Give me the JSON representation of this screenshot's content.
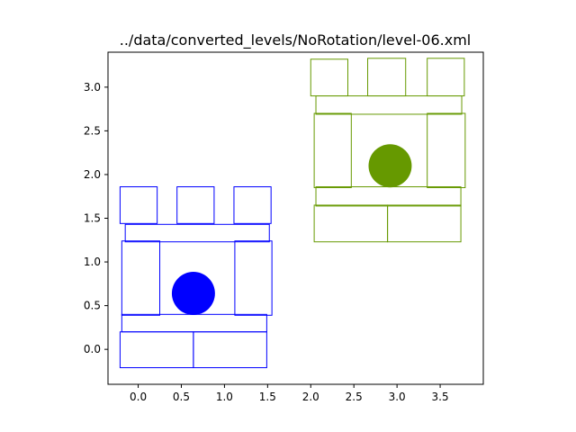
{
  "chart_data": {
    "type": "scatter",
    "title": "../data/converted_levels/NoRotation/level-06.xml",
    "xlabel": "",
    "ylabel": "",
    "xlim": [
      -0.35,
      4.0
    ],
    "ylim": [
      -0.4,
      3.4
    ],
    "xticks": [
      0.0,
      0.5,
      1.0,
      1.5,
      2.0,
      2.5,
      3.0,
      3.5
    ],
    "yticks": [
      0.0,
      0.5,
      1.0,
      1.5,
      2.0,
      2.5,
      3.0
    ],
    "xtick_labels": [
      "0.0",
      "0.5",
      "1.0",
      "1.5",
      "2.0",
      "2.5",
      "3.0",
      "3.5"
    ],
    "ytick_labels": [
      "0.0",
      "0.5",
      "1.0",
      "1.5",
      "2.0",
      "2.5",
      "3.0"
    ],
    "grid": false,
    "groups": [
      {
        "color": "#0000ff",
        "blocks": [
          {
            "x0": -0.21,
            "y0": -0.21,
            "x1": 0.64,
            "y1": 0.2
          },
          {
            "x0": 0.64,
            "y0": -0.21,
            "x1": 1.49,
            "y1": 0.2
          },
          {
            "x0": -0.19,
            "y0": 0.2,
            "x1": 1.49,
            "y1": 0.4
          },
          {
            "x0": -0.19,
            "y0": 0.39,
            "x1": 0.25,
            "y1": 1.24
          },
          {
            "x0": 1.12,
            "y0": 0.39,
            "x1": 1.55,
            "y1": 1.24
          },
          {
            "x0": -0.15,
            "y0": 1.23,
            "x1": 1.52,
            "y1": 1.43
          },
          {
            "x0": -0.21,
            "y0": 1.44,
            "x1": 0.22,
            "y1": 1.86
          },
          {
            "x0": 0.45,
            "y0": 1.44,
            "x1": 0.88,
            "y1": 1.86
          },
          {
            "x0": 1.11,
            "y0": 1.44,
            "x1": 1.54,
            "y1": 1.86
          }
        ],
        "ball": {
          "x": 0.64,
          "y": 0.64,
          "r": 0.25
        }
      },
      {
        "color": "#669900",
        "blocks": [
          {
            "x0": 2.04,
            "y0": 1.23,
            "x1": 2.89,
            "y1": 1.65
          },
          {
            "x0": 2.89,
            "y0": 1.23,
            "x1": 3.74,
            "y1": 1.65
          },
          {
            "x0": 2.06,
            "y0": 1.64,
            "x1": 3.74,
            "y1": 1.86
          },
          {
            "x0": 2.04,
            "y0": 1.85,
            "x1": 2.47,
            "y1": 2.7
          },
          {
            "x0": 3.35,
            "y0": 1.85,
            "x1": 3.79,
            "y1": 2.7
          },
          {
            "x0": 2.06,
            "y0": 2.69,
            "x1": 3.75,
            "y1": 2.9
          },
          {
            "x0": 2.0,
            "y0": 2.9,
            "x1": 2.43,
            "y1": 3.32
          },
          {
            "x0": 2.66,
            "y0": 2.9,
            "x1": 3.1,
            "y1": 3.33
          },
          {
            "x0": 3.35,
            "y0": 2.9,
            "x1": 3.78,
            "y1": 3.33
          }
        ],
        "ball": {
          "x": 2.92,
          "y": 2.1,
          "r": 0.25
        }
      }
    ]
  }
}
